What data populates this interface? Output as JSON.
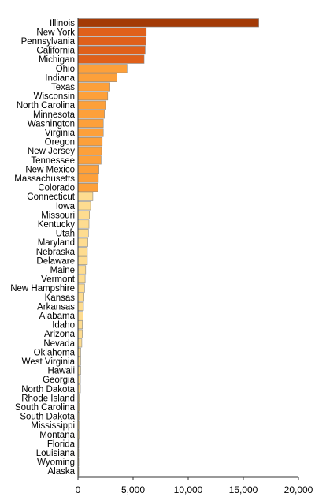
{
  "chart_data": {
    "type": "bar",
    "orientation": "horizontal",
    "title": "",
    "xlabel": "",
    "ylabel": "",
    "xlim": [
      0,
      20000
    ],
    "x_ticks": [
      0,
      5000,
      10000,
      15000,
      20000
    ],
    "x_tick_labels": [
      "0",
      "5,000",
      "10,000",
      "15,000",
      "20,000"
    ],
    "grid": false,
    "legend": "none",
    "colors": {
      "tier1": "#a33a06",
      "tier2": "#e0601a",
      "tier3": "#fda03a",
      "tier4": "#fedc90",
      "edge": "#888888",
      "axis": "#333333",
      "text": "#000000"
    },
    "bars": [
      {
        "label": "Illinois",
        "value": 16400,
        "tier": "tier1"
      },
      {
        "label": "New York",
        "value": 6200,
        "tier": "tier2"
      },
      {
        "label": "Pennsylvania",
        "value": 6150,
        "tier": "tier2"
      },
      {
        "label": "California",
        "value": 6100,
        "tier": "tier2"
      },
      {
        "label": "Michigan",
        "value": 6000,
        "tier": "tier2"
      },
      {
        "label": "Ohio",
        "value": 4450,
        "tier": "tier3"
      },
      {
        "label": "Indiana",
        "value": 3550,
        "tier": "tier3"
      },
      {
        "label": "Texas",
        "value": 2900,
        "tier": "tier3"
      },
      {
        "label": "Wisconsin",
        "value": 2700,
        "tier": "tier3"
      },
      {
        "label": "North Carolina",
        "value": 2500,
        "tier": "tier3"
      },
      {
        "label": "Minnesota",
        "value": 2400,
        "tier": "tier3"
      },
      {
        "label": "Washington",
        "value": 2300,
        "tier": "tier3"
      },
      {
        "label": "Virginia",
        "value": 2300,
        "tier": "tier3"
      },
      {
        "label": "Oregon",
        "value": 2200,
        "tier": "tier3"
      },
      {
        "label": "New Jersey",
        "value": 2150,
        "tier": "tier3"
      },
      {
        "label": "Tennessee",
        "value": 2100,
        "tier": "tier3"
      },
      {
        "label": "New Mexico",
        "value": 1900,
        "tier": "tier3"
      },
      {
        "label": "Massachusetts",
        "value": 1850,
        "tier": "tier3"
      },
      {
        "label": "Colorado",
        "value": 1800,
        "tier": "tier3"
      },
      {
        "label": "Connecticut",
        "value": 1350,
        "tier": "tier4"
      },
      {
        "label": "Iowa",
        "value": 1150,
        "tier": "tier4"
      },
      {
        "label": "Missouri",
        "value": 1050,
        "tier": "tier4"
      },
      {
        "label": "Kentucky",
        "value": 1000,
        "tier": "tier4"
      },
      {
        "label": "Utah",
        "value": 950,
        "tier": "tier4"
      },
      {
        "label": "Maryland",
        "value": 900,
        "tier": "tier4"
      },
      {
        "label": "Nebraska",
        "value": 850,
        "tier": "tier4"
      },
      {
        "label": "Delaware",
        "value": 850,
        "tier": "tier4"
      },
      {
        "label": "Maine",
        "value": 700,
        "tier": "tier4"
      },
      {
        "label": "Vermont",
        "value": 650,
        "tier": "tier4"
      },
      {
        "label": "New Hampshire",
        "value": 600,
        "tier": "tier4"
      },
      {
        "label": "Kansas",
        "value": 550,
        "tier": "tier4"
      },
      {
        "label": "Arkansas",
        "value": 500,
        "tier": "tier4"
      },
      {
        "label": "Alabama",
        "value": 450,
        "tier": "tier4"
      },
      {
        "label": "Idaho",
        "value": 400,
        "tier": "tier4"
      },
      {
        "label": "Arizona",
        "value": 400,
        "tier": "tier4"
      },
      {
        "label": "Nevada",
        "value": 350,
        "tier": "tier4"
      },
      {
        "label": "Oklahoma",
        "value": 250,
        "tier": "tier4"
      },
      {
        "label": "West Virginia",
        "value": 250,
        "tier": "tier4"
      },
      {
        "label": "Hawaii",
        "value": 250,
        "tier": "tier4"
      },
      {
        "label": "Georgia",
        "value": 220,
        "tier": "tier4"
      },
      {
        "label": "North Dakota",
        "value": 220,
        "tier": "tier4"
      },
      {
        "label": "Rhode Island",
        "value": 120,
        "tier": "tier4"
      },
      {
        "label": "South Carolina",
        "value": 120,
        "tier": "tier4"
      },
      {
        "label": "South Dakota",
        "value": 100,
        "tier": "tier4"
      },
      {
        "label": "Mississippi",
        "value": 100,
        "tier": "tier4"
      },
      {
        "label": "Montana",
        "value": 100,
        "tier": "tier4"
      },
      {
        "label": "Florida",
        "value": 20,
        "tier": "tier4"
      },
      {
        "label": "Louisiana",
        "value": 20,
        "tier": "tier4"
      },
      {
        "label": "Wyoming",
        "value": 20,
        "tier": "tier4"
      },
      {
        "label": "Alaska",
        "value": 20,
        "tier": "tier4"
      }
    ]
  }
}
